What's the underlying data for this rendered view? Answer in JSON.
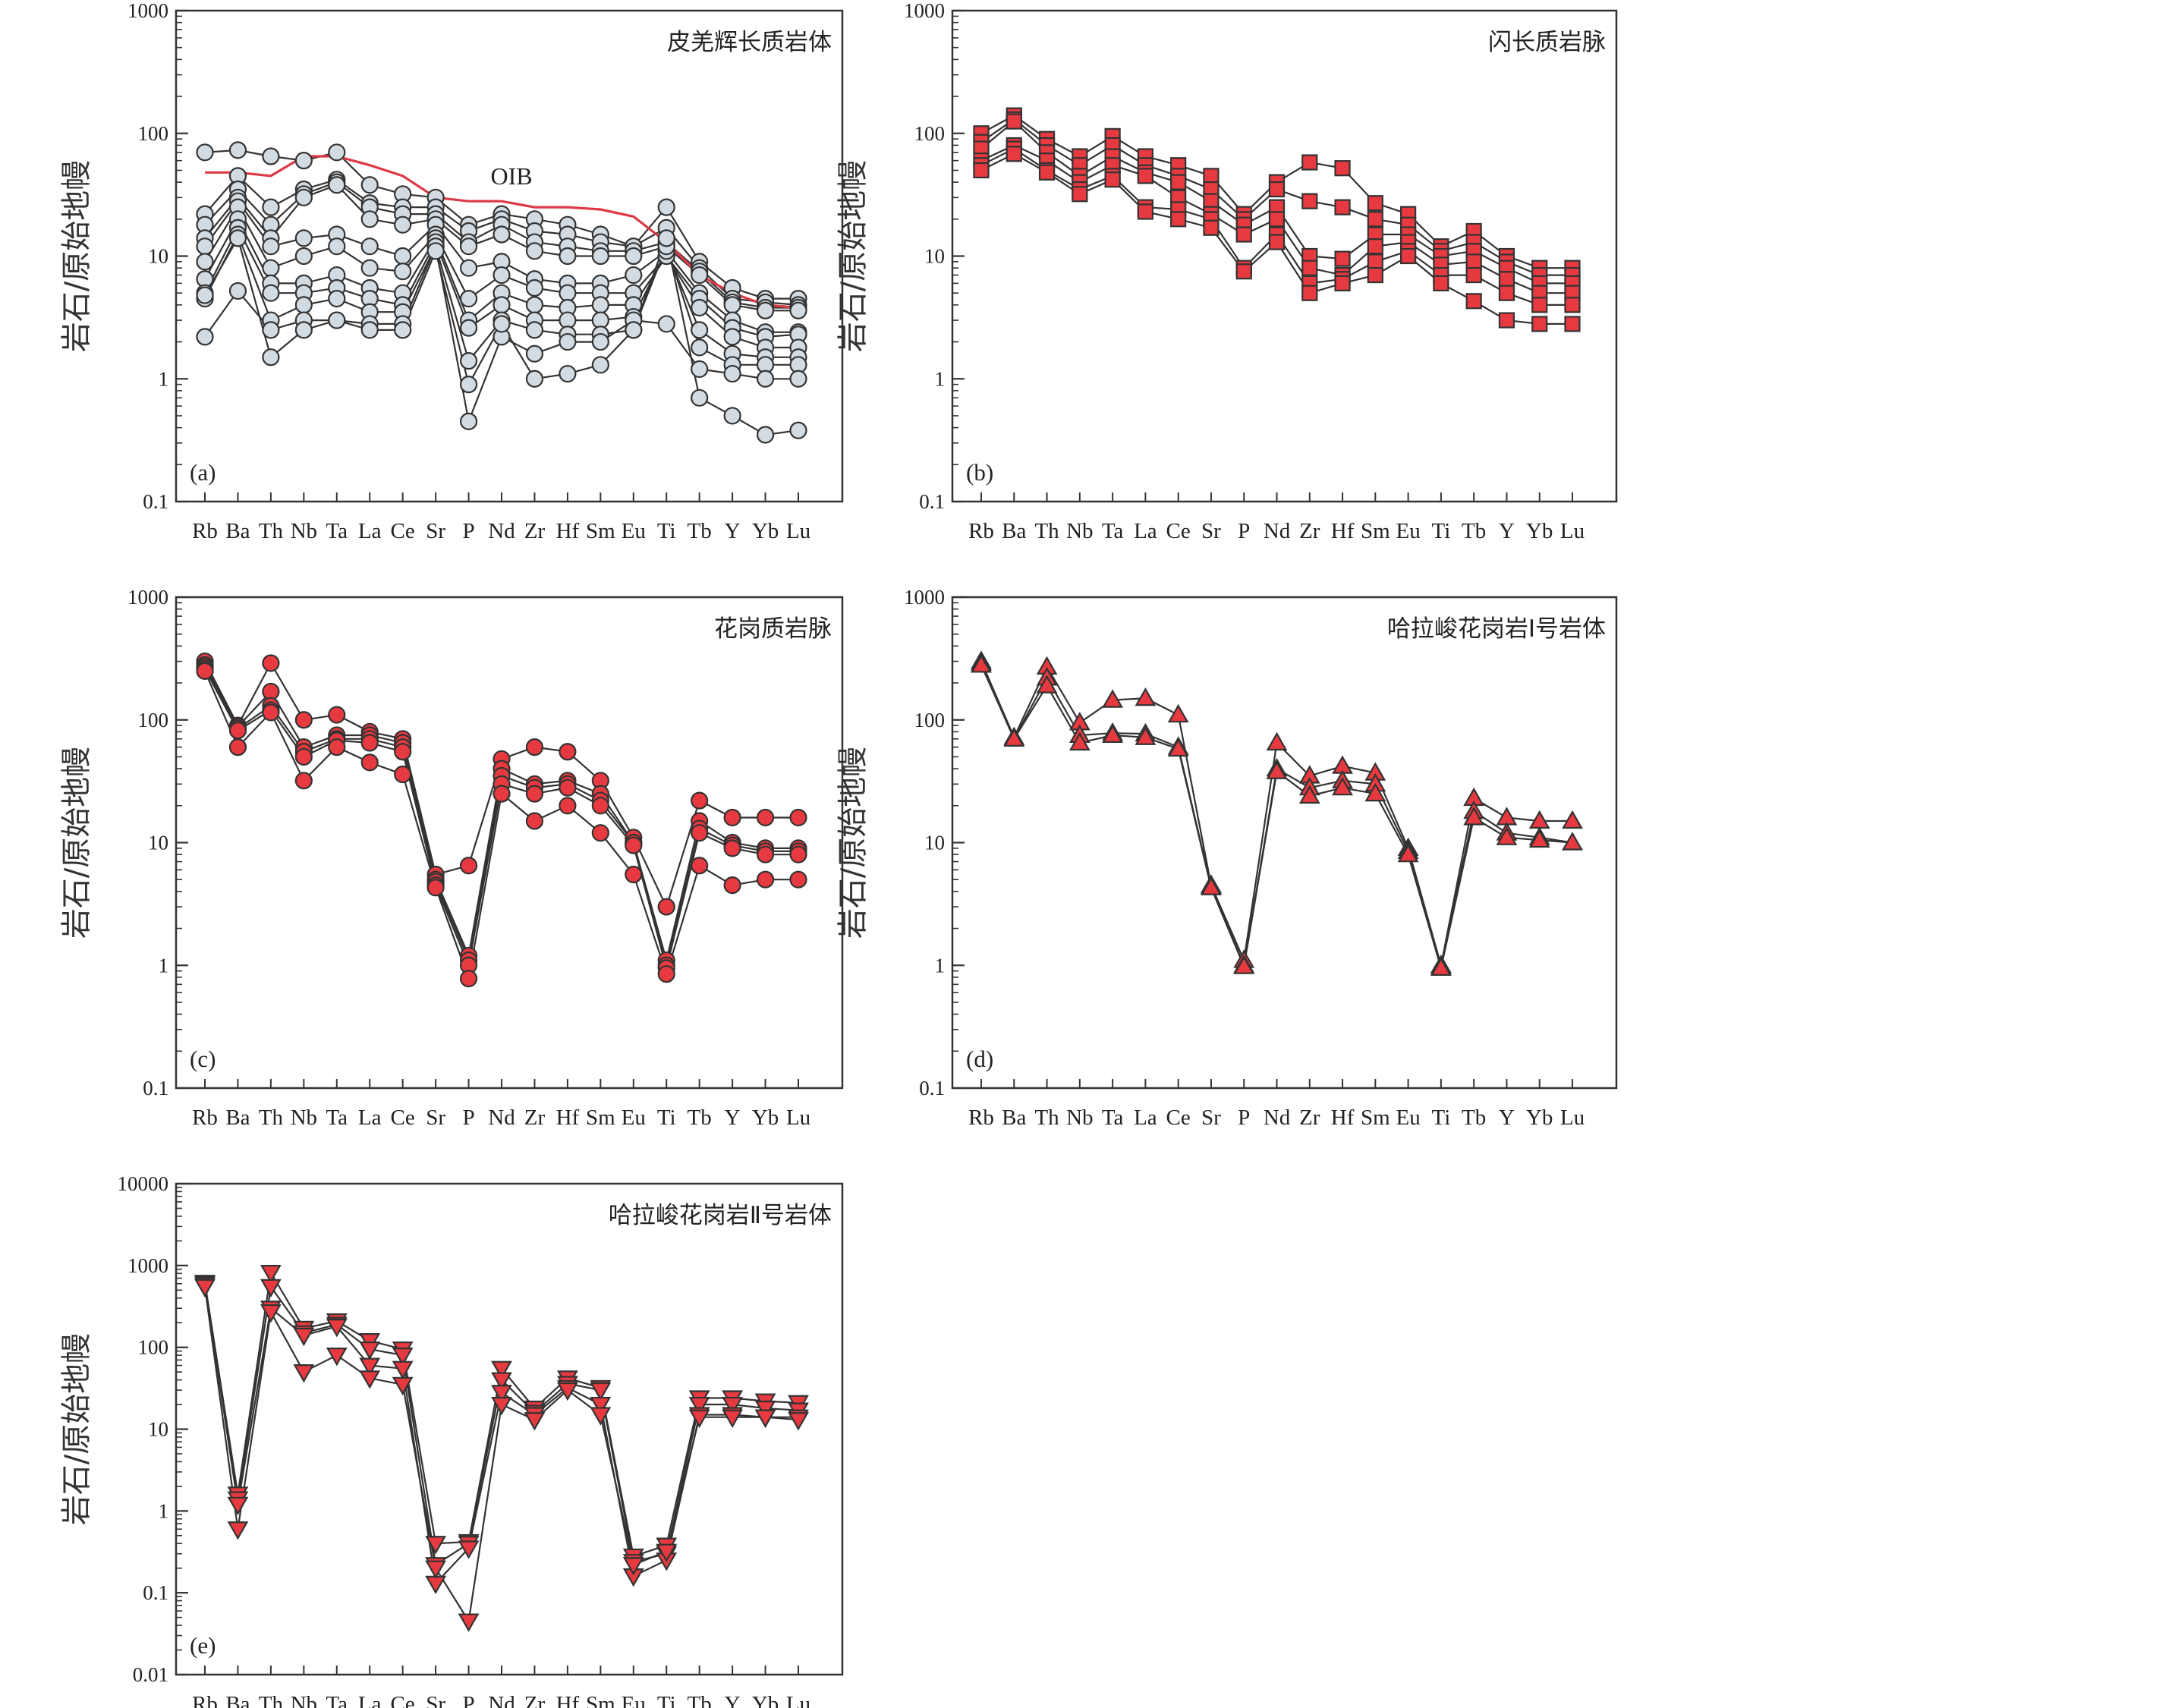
{
  "ylabel": "岩石/原始地幔",
  "categories": [
    "Rb",
    "Ba",
    "Th",
    "Nb",
    "Ta",
    "La",
    "Ce",
    "Sr",
    "P",
    "Nd",
    "Zr",
    "Hf",
    "Sm",
    "Eu",
    "Ti",
    "Tb",
    "Y",
    "Yb",
    "Lu"
  ],
  "colors": {
    "red": "#e63a40",
    "gray_fill": "#d2dbe2",
    "ink": "#333333",
    "oib": "#dd3a45"
  },
  "chart_data": [
    {
      "panel": "(a)",
      "title": "皮羌辉长质岩体",
      "type": "line",
      "marker": "circle",
      "fill": "gray",
      "ylim": [
        0.1,
        1000
      ],
      "ytick_labels": [
        "0.1",
        "1",
        "10",
        "100",
        "1000"
      ],
      "reference": {
        "name": "OIB",
        "values": [
          48,
          48,
          45,
          65,
          65,
          55,
          45,
          30,
          28,
          28,
          25,
          25,
          24,
          21,
          13,
          7,
          5,
          4,
          3.8
        ]
      },
      "series": [
        {
          "values": [
            70,
            73,
            65,
            60,
            70,
            38,
            32,
            30,
            18,
            22,
            20,
            18,
            15,
            12,
            25,
            9,
            5.5,
            4.5,
            4.5
          ]
        },
        {
          "values": [
            22,
            45,
            25,
            35,
            42,
            27,
            25,
            25,
            16,
            20,
            16,
            15,
            13,
            12,
            17,
            8,
            4.5,
            4.2,
            4
          ]
        },
        {
          "values": [
            18,
            35,
            18,
            32,
            40,
            25,
            22,
            22,
            13,
            18,
            13,
            12,
            11,
            11,
            13,
            7.5,
            4.2,
            3.8,
            3.8
          ]
        },
        {
          "values": [
            14,
            30,
            14,
            30,
            38,
            20,
            18,
            20,
            12,
            15,
            11,
            10,
            10,
            10,
            12,
            7,
            4,
            3.6,
            3.6
          ]
        },
        {
          "values": [
            12,
            28,
            12,
            14,
            15,
            12,
            10,
            18,
            8,
            9,
            6.5,
            6,
            6,
            7,
            11,
            5,
            3,
            2.4,
            2.4
          ]
        },
        {
          "values": [
            9,
            25,
            8,
            10,
            12,
            8,
            7.5,
            15,
            4.5,
            7,
            5.5,
            5,
            5,
            5,
            10,
            4.5,
            2.6,
            2.2,
            2.3
          ]
        },
        {
          "values": [
            6.5,
            20,
            6,
            6,
            7,
            5.5,
            5,
            14,
            3,
            5,
            4,
            3.8,
            4,
            4,
            10,
            3.8,
            2.2,
            1.8,
            1.8
          ]
        },
        {
          "values": [
            5,
            17,
            5,
            5,
            5.5,
            4.5,
            4,
            13,
            2.6,
            4,
            3,
            3,
            3,
            3.2,
            11,
            2.5,
            1.6,
            1.5,
            1.5
          ]
        },
        {
          "values": [
            4.5,
            15,
            3,
            4,
            4.5,
            3.5,
            3.5,
            12,
            1.4,
            3,
            2.5,
            2.3,
            2.3,
            2.5,
            12,
            1.8,
            1.3,
            1.3,
            1.3
          ]
        },
        {
          "values": [
            2.2,
            5.2,
            2.5,
            3,
            3,
            2.8,
            2.8,
            12,
            0.45,
            2.2,
            1.6,
            2,
            2,
            3,
            2.8,
            1.2,
            1.1,
            1,
            1
          ]
        },
        {
          "values": [
            4.8,
            14,
            1.5,
            2.5,
            3,
            2.5,
            2.5,
            11,
            0.9,
            2.8,
            1,
            1.1,
            1.3,
            2.5,
            14,
            0.7,
            0.5,
            0.35,
            0.38
          ]
        }
      ]
    },
    {
      "panel": "(b)",
      "title": "闪长质岩脉",
      "type": "line",
      "marker": "square",
      "fill": "red",
      "ylim": [
        0.1,
        1000
      ],
      "ytick_labels": [
        "0.1",
        "1",
        "10",
        "100",
        "1000"
      ],
      "series": [
        {
          "values": [
            100,
            140,
            90,
            65,
            95,
            65,
            55,
            45,
            22,
            40,
            58,
            52,
            27,
            22,
            12,
            16,
            10,
            8,
            8
          ]
        },
        {
          "values": [
            85,
            130,
            80,
            55,
            80,
            55,
            45,
            35,
            20,
            35,
            28,
            25,
            20,
            18,
            11,
            13,
            9,
            7,
            7
          ]
        },
        {
          "values": [
            75,
            125,
            70,
            45,
            65,
            48,
            40,
            28,
            18,
            25,
            10,
            9.5,
            15,
            15,
            10,
            11,
            8,
            6,
            6
          ]
        },
        {
          "values": [
            60,
            80,
            60,
            40,
            55,
            45,
            30,
            22,
            15,
            20,
            8,
            7,
            12,
            13,
            8.5,
            9,
            6.5,
            5,
            5
          ]
        },
        {
          "values": [
            55,
            75,
            50,
            35,
            45,
            25,
            24,
            20,
            8,
            15,
            6,
            6.5,
            9,
            11,
            7,
            7,
            5,
            4,
            4
          ]
        },
        {
          "values": [
            50,
            68,
            48,
            32,
            42,
            23,
            20,
            17,
            7.5,
            13,
            5,
            6,
            7,
            10,
            6,
            4.3,
            3,
            2.8,
            2.8
          ]
        }
      ]
    },
    {
      "panel": "(c)",
      "title": "花岗质岩脉",
      "type": "line",
      "marker": "circle",
      "fill": "red",
      "ylim": [
        0.1,
        1000
      ],
      "ytick_labels": [
        "0.1",
        "1",
        "10",
        "100",
        "1000"
      ],
      "series": [
        {
          "values": [
            300,
            90,
            290,
            100,
            110,
            80,
            70,
            5.5,
            6.5,
            48,
            60,
            55,
            32,
            11,
            3,
            22,
            16,
            16,
            16
          ]
        },
        {
          "values": [
            280,
            88,
            170,
            60,
            75,
            75,
            65,
            5,
            1.2,
            40,
            30,
            32,
            25,
            10,
            1.1,
            15,
            10,
            9,
            9
          ]
        },
        {
          "values": [
            270,
            85,
            130,
            55,
            70,
            70,
            60,
            4.8,
            1.1,
            35,
            28,
            30,
            22,
            10,
            1,
            13,
            9.5,
            8.5,
            8.5
          ]
        },
        {
          "values": [
            260,
            82,
            120,
            50,
            68,
            65,
            55,
            4.5,
            1,
            30,
            25,
            28,
            20,
            9.5,
            0.95,
            12,
            9,
            8,
            8
          ]
        },
        {
          "values": [
            250,
            60,
            115,
            32,
            60,
            45,
            36,
            4.3,
            0.78,
            25,
            15,
            20,
            12,
            5.5,
            0.85,
            6.5,
            4.5,
            5,
            5
          ]
        }
      ]
    },
    {
      "panel": "(d)",
      "title": "哈拉峻花岗岩Ⅰ号岩体",
      "type": "line",
      "marker": "triangle-up",
      "fill": "red",
      "ylim": [
        0.1,
        1000
      ],
      "ytick_labels": [
        "0.1",
        "1",
        "10",
        "100",
        "1000"
      ],
      "series": [
        {
          "values": [
            300,
            72,
            270,
            95,
            145,
            150,
            110,
            4.5,
            1.1,
            65,
            35,
            42,
            37,
            9,
            1,
            23,
            16,
            15,
            15
          ]
        },
        {
          "values": [
            290,
            70,
            220,
            75,
            78,
            77,
            60,
            4.4,
            1,
            40,
            28,
            32,
            30,
            8.5,
            0.98,
            18,
            12,
            11,
            10
          ]
        },
        {
          "values": [
            280,
            70,
            190,
            65,
            75,
            72,
            58,
            4.3,
            0.98,
            38,
            24,
            28,
            25,
            8,
            0.95,
            16,
            11,
            10.5,
            10
          ]
        }
      ]
    },
    {
      "panel": "(e)",
      "title": "哈拉峻花岗岩Ⅱ号岩体",
      "type": "line",
      "marker": "triangle-down",
      "fill": "red",
      "ylim": [
        0.01,
        10000
      ],
      "ytick_labels": [
        "0.01",
        "0.1",
        "1",
        "10",
        "100",
        "1000",
        "10000"
      ],
      "series": [
        {
          "values": [
            620,
            1.6,
            820,
            170,
            210,
            120,
            95,
            0.4,
            0.42,
            55,
            18,
            42,
            32,
            0.28,
            0.38,
            24,
            24,
            22,
            21
          ]
        },
        {
          "values": [
            600,
            1.4,
            550,
            150,
            190,
            95,
            80,
            0.22,
            0.4,
            40,
            16,
            36,
            30,
            0.24,
            0.3,
            20,
            20,
            18,
            17
          ]
        },
        {
          "values": [
            580,
            1.2,
            300,
            140,
            180,
            60,
            55,
            0.13,
            0.35,
            28,
            15,
            32,
            20,
            0.16,
            0.25,
            15,
            15,
            14,
            14
          ]
        },
        {
          "values": [
            550,
            0.6,
            270,
            50,
            80,
            42,
            35,
            0.2,
            0.045,
            20,
            13,
            30,
            15,
            0.22,
            0.32,
            14,
            14,
            14,
            13
          ]
        }
      ]
    }
  ]
}
